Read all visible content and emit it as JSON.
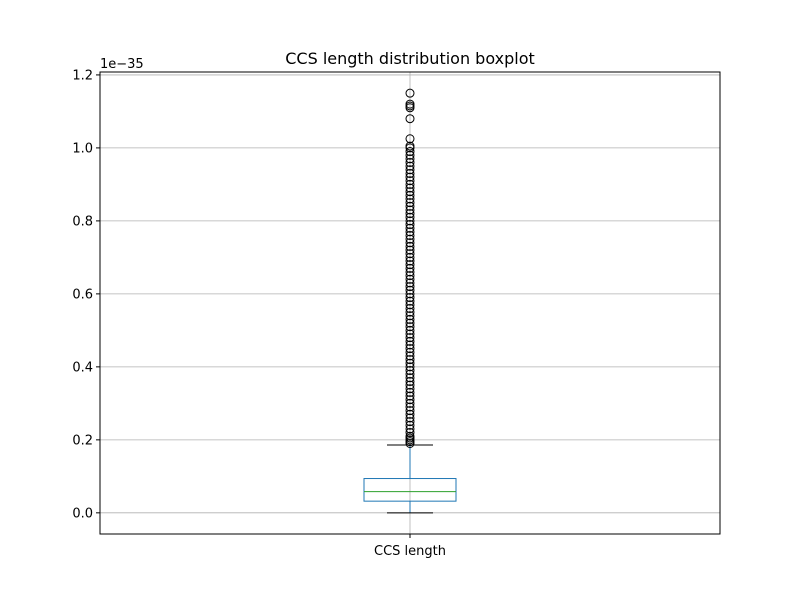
{
  "chart_data": {
    "type": "boxplot",
    "title": "CCS length distribution boxplot",
    "xlabel": "",
    "ylabel": "",
    "categories": [
      "CCS length"
    ],
    "y_offset_text": "1e−35",
    "y_scale_exponent": -35,
    "ylim": [
      -0.058,
      1.208
    ],
    "yticks": [
      0.0,
      0.2,
      0.4,
      0.6,
      0.8,
      1.0,
      1.2
    ],
    "ytick_labels": [
      "0.0",
      "0.2",
      "0.4",
      "0.6",
      "0.8",
      "1.0",
      "1.2"
    ],
    "grid": true,
    "boxes": [
      {
        "category": "CCS length",
        "whisker_low": 0.0,
        "q1": 0.032,
        "median": 0.058,
        "q3": 0.094,
        "whisker_high": 0.186,
        "outliers": [
          0.19,
          0.195,
          0.2,
          0.205,
          0.21,
          0.22,
          0.23,
          0.24,
          0.25,
          0.26,
          0.27,
          0.28,
          0.29,
          0.3,
          0.31,
          0.32,
          0.33,
          0.34,
          0.35,
          0.36,
          0.37,
          0.38,
          0.39,
          0.4,
          0.41,
          0.42,
          0.43,
          0.44,
          0.45,
          0.46,
          0.47,
          0.48,
          0.49,
          0.5,
          0.51,
          0.52,
          0.53,
          0.54,
          0.55,
          0.56,
          0.57,
          0.58,
          0.59,
          0.6,
          0.61,
          0.62,
          0.63,
          0.64,
          0.65,
          0.66,
          0.67,
          0.68,
          0.69,
          0.7,
          0.71,
          0.72,
          0.73,
          0.74,
          0.75,
          0.76,
          0.77,
          0.78,
          0.79,
          0.8,
          0.81,
          0.82,
          0.83,
          0.84,
          0.85,
          0.86,
          0.87,
          0.88,
          0.89,
          0.9,
          0.91,
          0.92,
          0.93,
          0.94,
          0.95,
          0.96,
          0.97,
          0.98,
          0.99,
          1.0,
          1.005,
          1.025,
          1.08,
          1.11,
          1.115,
          1.12,
          1.15
        ]
      }
    ]
  },
  "colors": {
    "box": "#1f77b4",
    "median": "#2ca02c",
    "whisker_cap": "#000000",
    "outlier": "#000000",
    "grid": "#b0b0b0",
    "axes": "#000000"
  }
}
